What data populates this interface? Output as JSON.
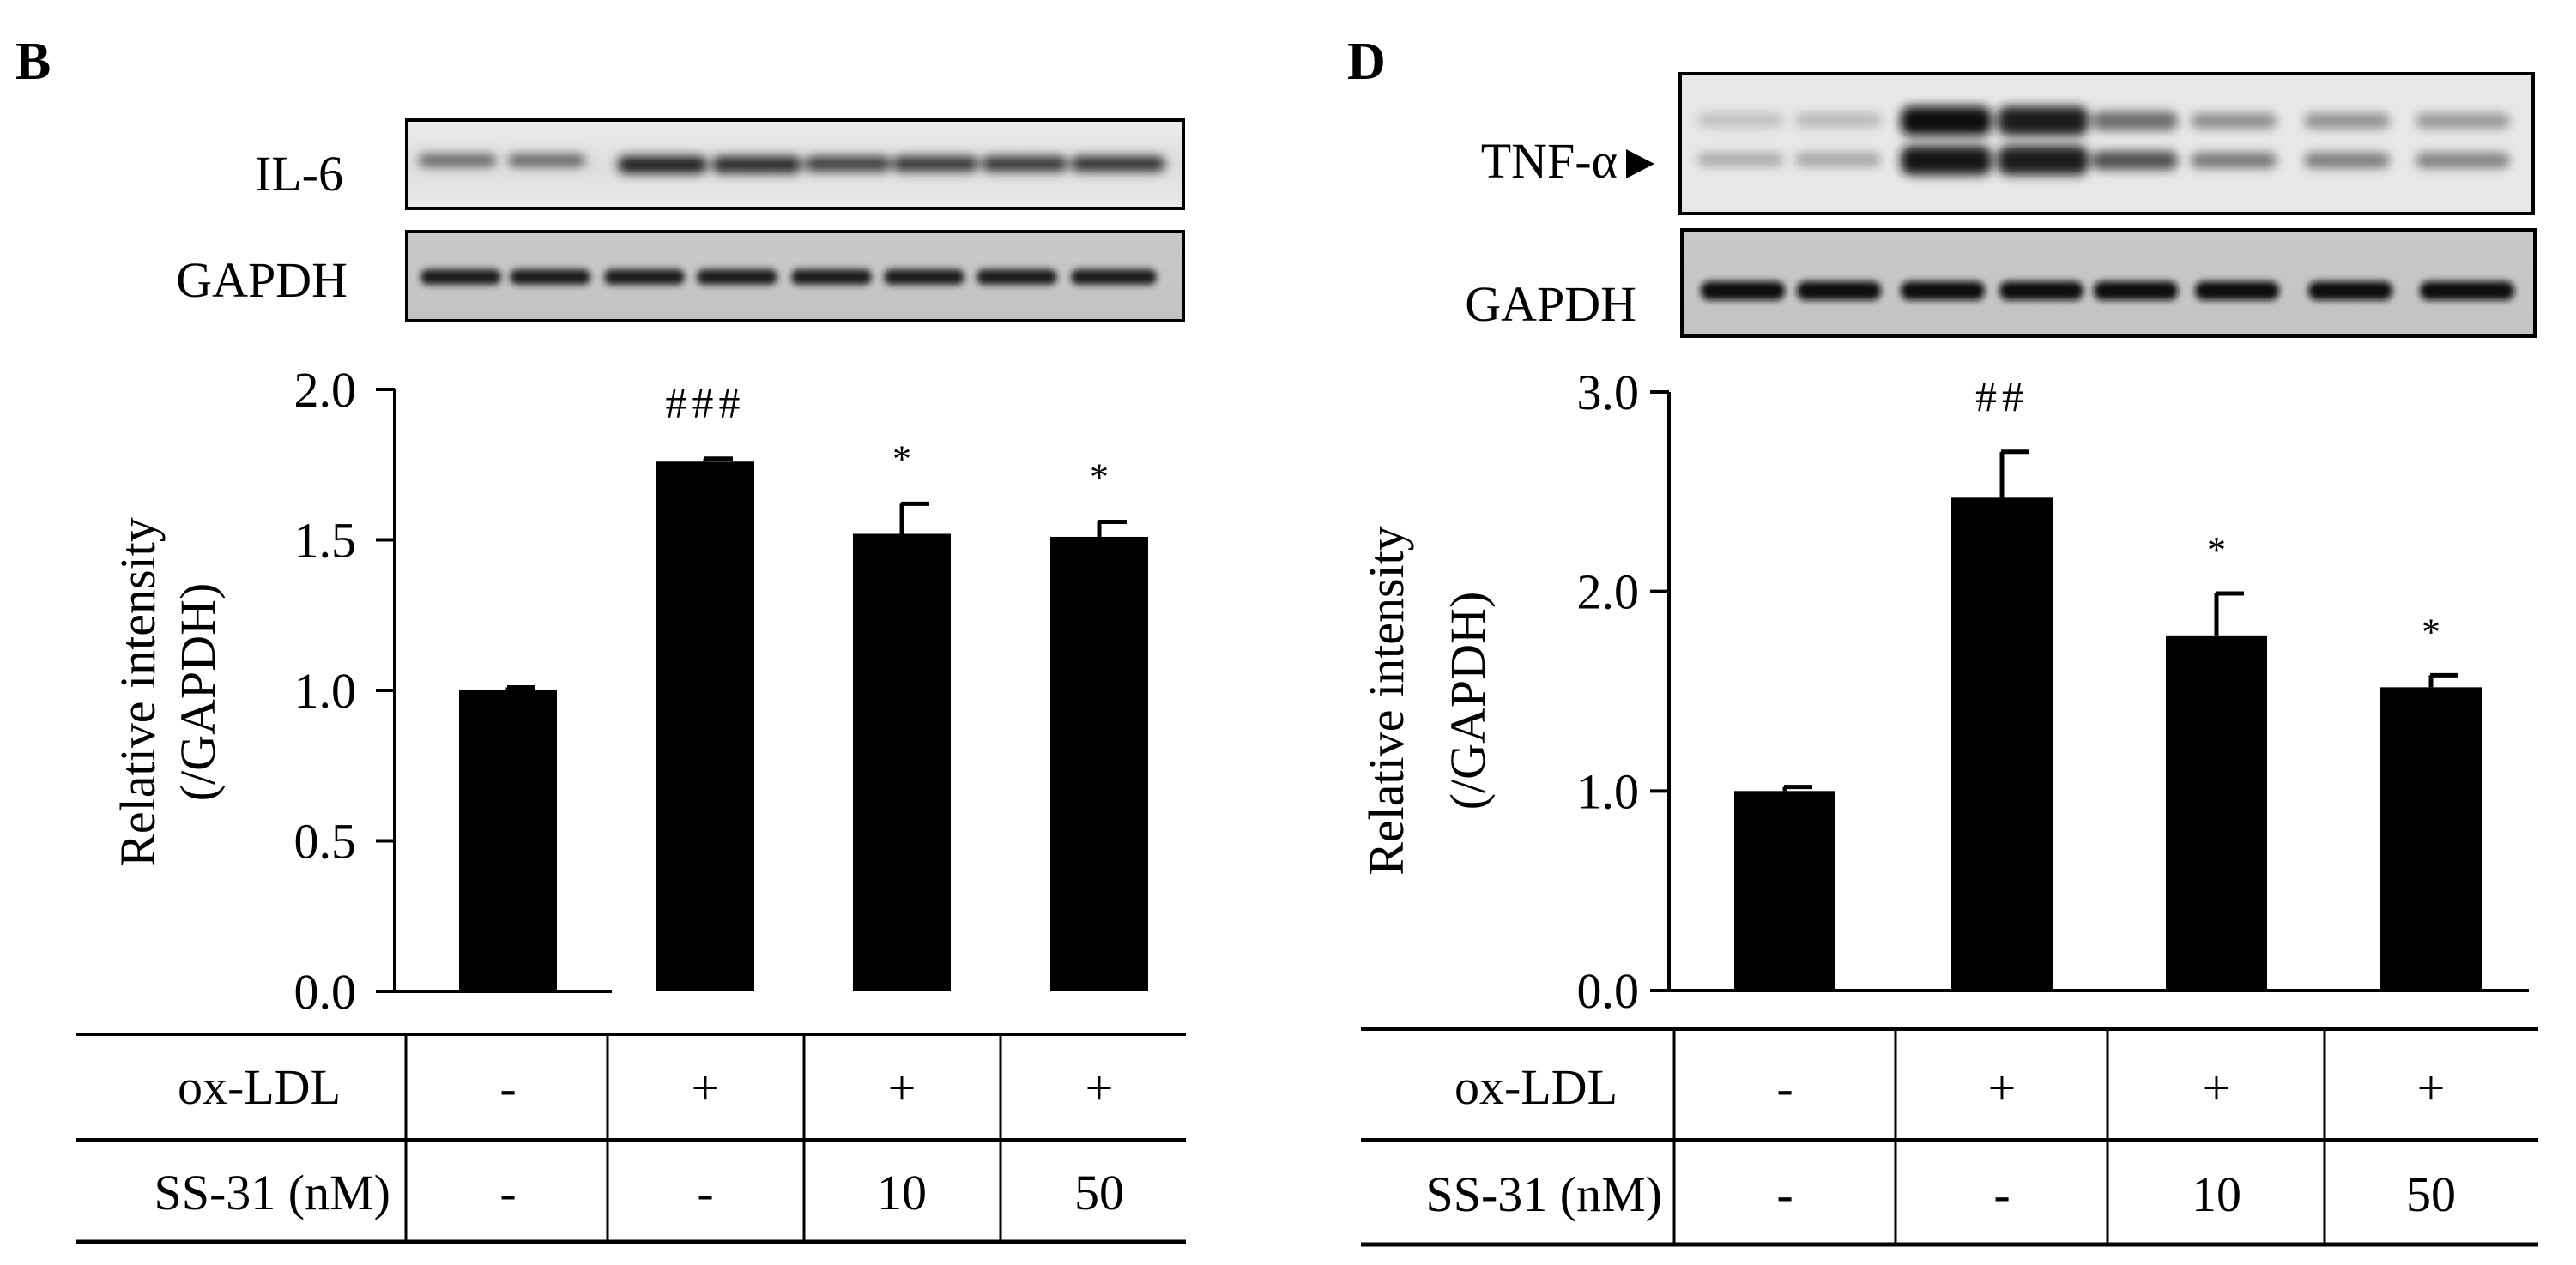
{
  "chart_data": [
    {
      "type": "bar",
      "panel_label": "B",
      "blot_labels": [
        "IL-6",
        "GAPDH"
      ],
      "ylabel_line1": "Relative intensity",
      "ylabel_line2": "(/GAPDH)",
      "ylim": [
        0,
        2.0
      ],
      "yticks": [
        "0.0",
        "0.5",
        "1.0",
        "1.5",
        "2.0"
      ],
      "yticks_values": [
        0,
        0.5,
        1.0,
        1.5,
        2.0
      ],
      "values": [
        1.0,
        1.76,
        1.52,
        1.51
      ],
      "errors": [
        0.01,
        0.01,
        0.1,
        0.05
      ],
      "significance": [
        "",
        "###",
        "*",
        "*"
      ],
      "bar_color": "#000000",
      "conditions": {
        "row1_label": "ox-LDL",
        "row1": [
          "-",
          "+",
          "+",
          "+"
        ],
        "row2_label": "SS-31 (nM)",
        "row2": [
          "-",
          "-",
          "10",
          "50"
        ]
      }
    },
    {
      "type": "bar",
      "panel_label": "D",
      "blot_labels": [
        "TNF-α",
        "GAPDH"
      ],
      "ylabel_line1": "Relative intensity",
      "ylabel_line2": "(/GAPDH)",
      "ylim": [
        0,
        3.0
      ],
      "yticks": [
        "0.0",
        "1.0",
        "2.0",
        "3.0"
      ],
      "yticks_values": [
        0,
        1.0,
        2.0,
        3.0
      ],
      "values": [
        1.0,
        2.47,
        1.78,
        1.52
      ],
      "errors": [
        0.02,
        0.23,
        0.21,
        0.06
      ],
      "significance": [
        "",
        "##",
        "*",
        "*"
      ],
      "bar_color": "#000000",
      "conditions": {
        "row1_label": "ox-LDL",
        "row1": [
          "-",
          "+",
          "+",
          "+"
        ],
        "row2_label": "SS-31 (nM)",
        "row2": [
          "-",
          "-",
          "10",
          "50"
        ]
      }
    }
  ]
}
